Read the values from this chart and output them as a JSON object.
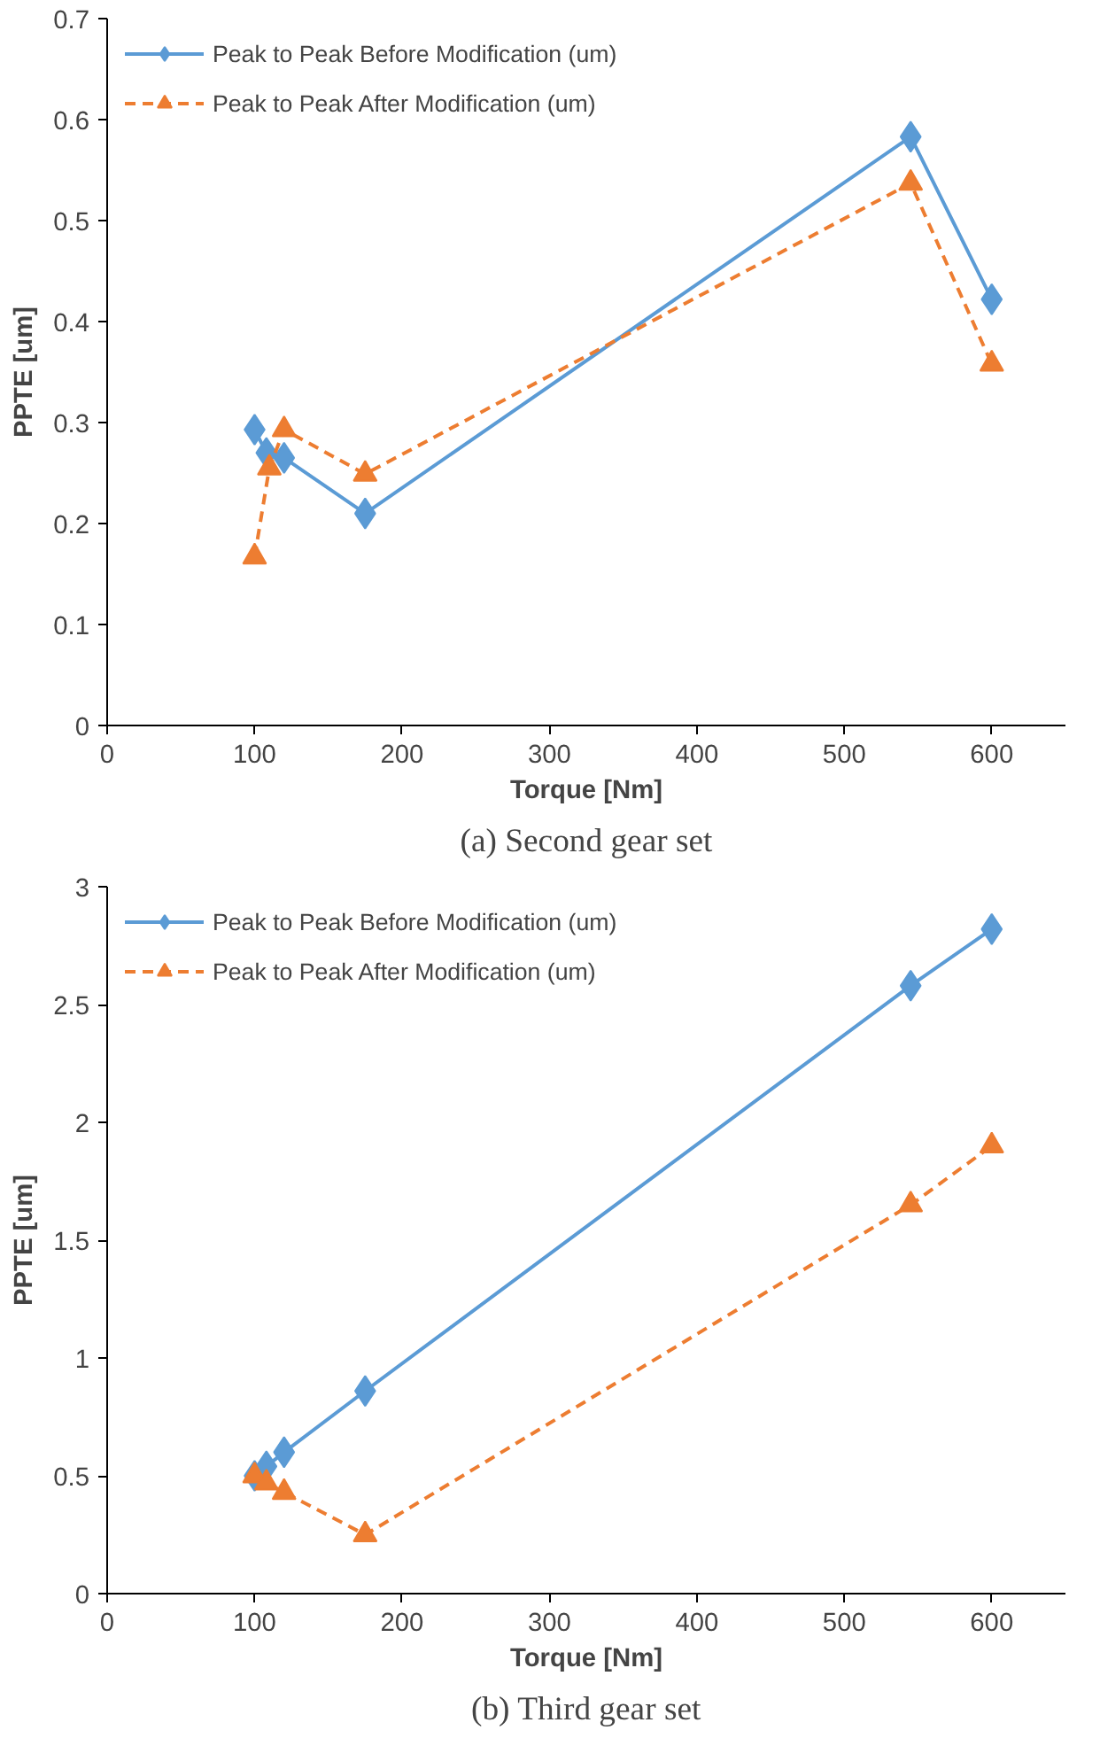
{
  "chart_data": [
    {
      "type": "line",
      "annotations": [
        "(a) Second gear set"
      ],
      "xlabel": "Torque [Nm]",
      "ylabel": "PPTE [um]",
      "xlim": [
        0,
        650
      ],
      "xticks": [
        0,
        100,
        200,
        300,
        400,
        500,
        600
      ],
      "ylim": [
        0,
        0.7
      ],
      "yticks": [
        0,
        0.1,
        0.2,
        0.3,
        0.4,
        0.5,
        0.6,
        0.7
      ],
      "grid": false,
      "legend": "top left",
      "series": [
        {
          "name": "Peak to Peak Before Modification (um)",
          "color": "#5b9bd5",
          "marker": "diamond",
          "line_style": "solid",
          "x": [
            100,
            108,
            120,
            175,
            545,
            600
          ],
          "values": [
            0.293,
            0.27,
            0.265,
            0.21,
            0.583,
            0.422
          ]
        },
        {
          "name": "Peak to Peak After Modification (um)",
          "color": "#ed7d31",
          "marker": "triangle",
          "line_style": "dashed",
          "x": [
            100,
            110,
            120,
            175,
            545,
            600
          ],
          "values": [
            0.167,
            0.255,
            0.293,
            0.249,
            0.537,
            0.358
          ]
        }
      ]
    },
    {
      "type": "line",
      "annotations": [
        "(b) Third gear set"
      ],
      "xlabel": "Torque [Nm]",
      "ylabel": "PPTE [um]",
      "xlim": [
        0,
        650
      ],
      "xticks": [
        0,
        100,
        200,
        300,
        400,
        500,
        600
      ],
      "ylim": [
        0,
        3
      ],
      "yticks": [
        0,
        0.5,
        1,
        1.5,
        2,
        2.5,
        3
      ],
      "grid": false,
      "legend": "top left",
      "series": [
        {
          "name": "Peak to Peak Before Modification (um)",
          "color": "#5b9bd5",
          "marker": "diamond",
          "line_style": "solid",
          "x": [
            100,
            108,
            120,
            175,
            545,
            600
          ],
          "values": [
            0.5,
            0.54,
            0.6,
            0.86,
            2.58,
            2.82
          ]
        },
        {
          "name": "Peak to Peak After Modification (um)",
          "color": "#ed7d31",
          "marker": "triangle",
          "line_style": "dashed",
          "x": [
            100,
            108,
            120,
            175,
            545,
            600
          ],
          "values": [
            0.5,
            0.47,
            0.43,
            0.25,
            1.65,
            1.9
          ]
        }
      ]
    }
  ]
}
